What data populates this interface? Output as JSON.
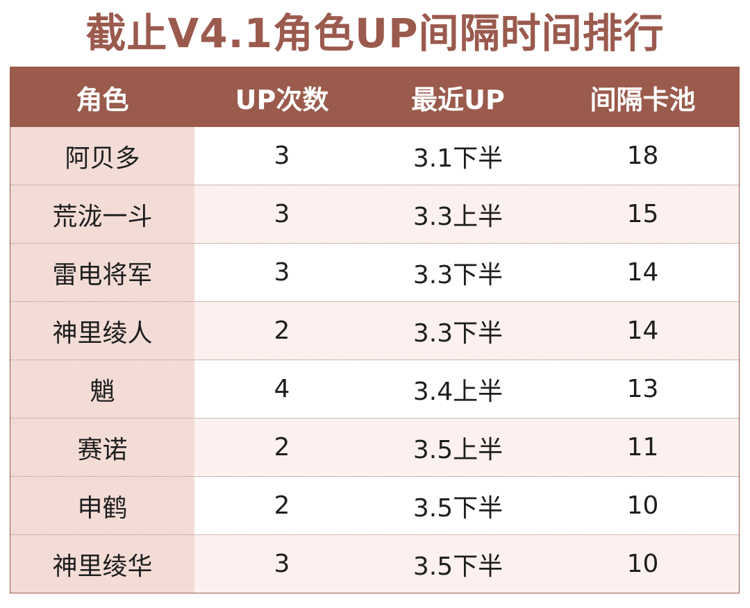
{
  "title": "截止V4.1角色UP间隔时间排行",
  "colors": {
    "header_bg": "#9a5a4c",
    "title_color": "#9b5a4e",
    "name_col_bg": "#f4dcd6",
    "alt_row_bg": "#fcf1ef"
  },
  "table": {
    "headers": [
      "角色",
      "UP次数",
      "最近UP",
      "间隔卡池"
    ],
    "rows": [
      {
        "name": "阿贝多",
        "up_count": "3",
        "latest_up": "3.1下半",
        "interval": "18"
      },
      {
        "name": "荒泷一斗",
        "up_count": "3",
        "latest_up": "3.3上半",
        "interval": "15"
      },
      {
        "name": "雷电将军",
        "up_count": "3",
        "latest_up": "3.3下半",
        "interval": "14"
      },
      {
        "name": "神里绫人",
        "up_count": "2",
        "latest_up": "3.3下半",
        "interval": "14"
      },
      {
        "name": "魈",
        "up_count": "4",
        "latest_up": "3.4上半",
        "interval": "13"
      },
      {
        "name": "赛诺",
        "up_count": "2",
        "latest_up": "3.5上半",
        "interval": "11"
      },
      {
        "name": "申鹤",
        "up_count": "2",
        "latest_up": "3.5下半",
        "interval": "10"
      },
      {
        "name": "神里绫华",
        "up_count": "3",
        "latest_up": "3.5下半",
        "interval": "10"
      }
    ]
  }
}
